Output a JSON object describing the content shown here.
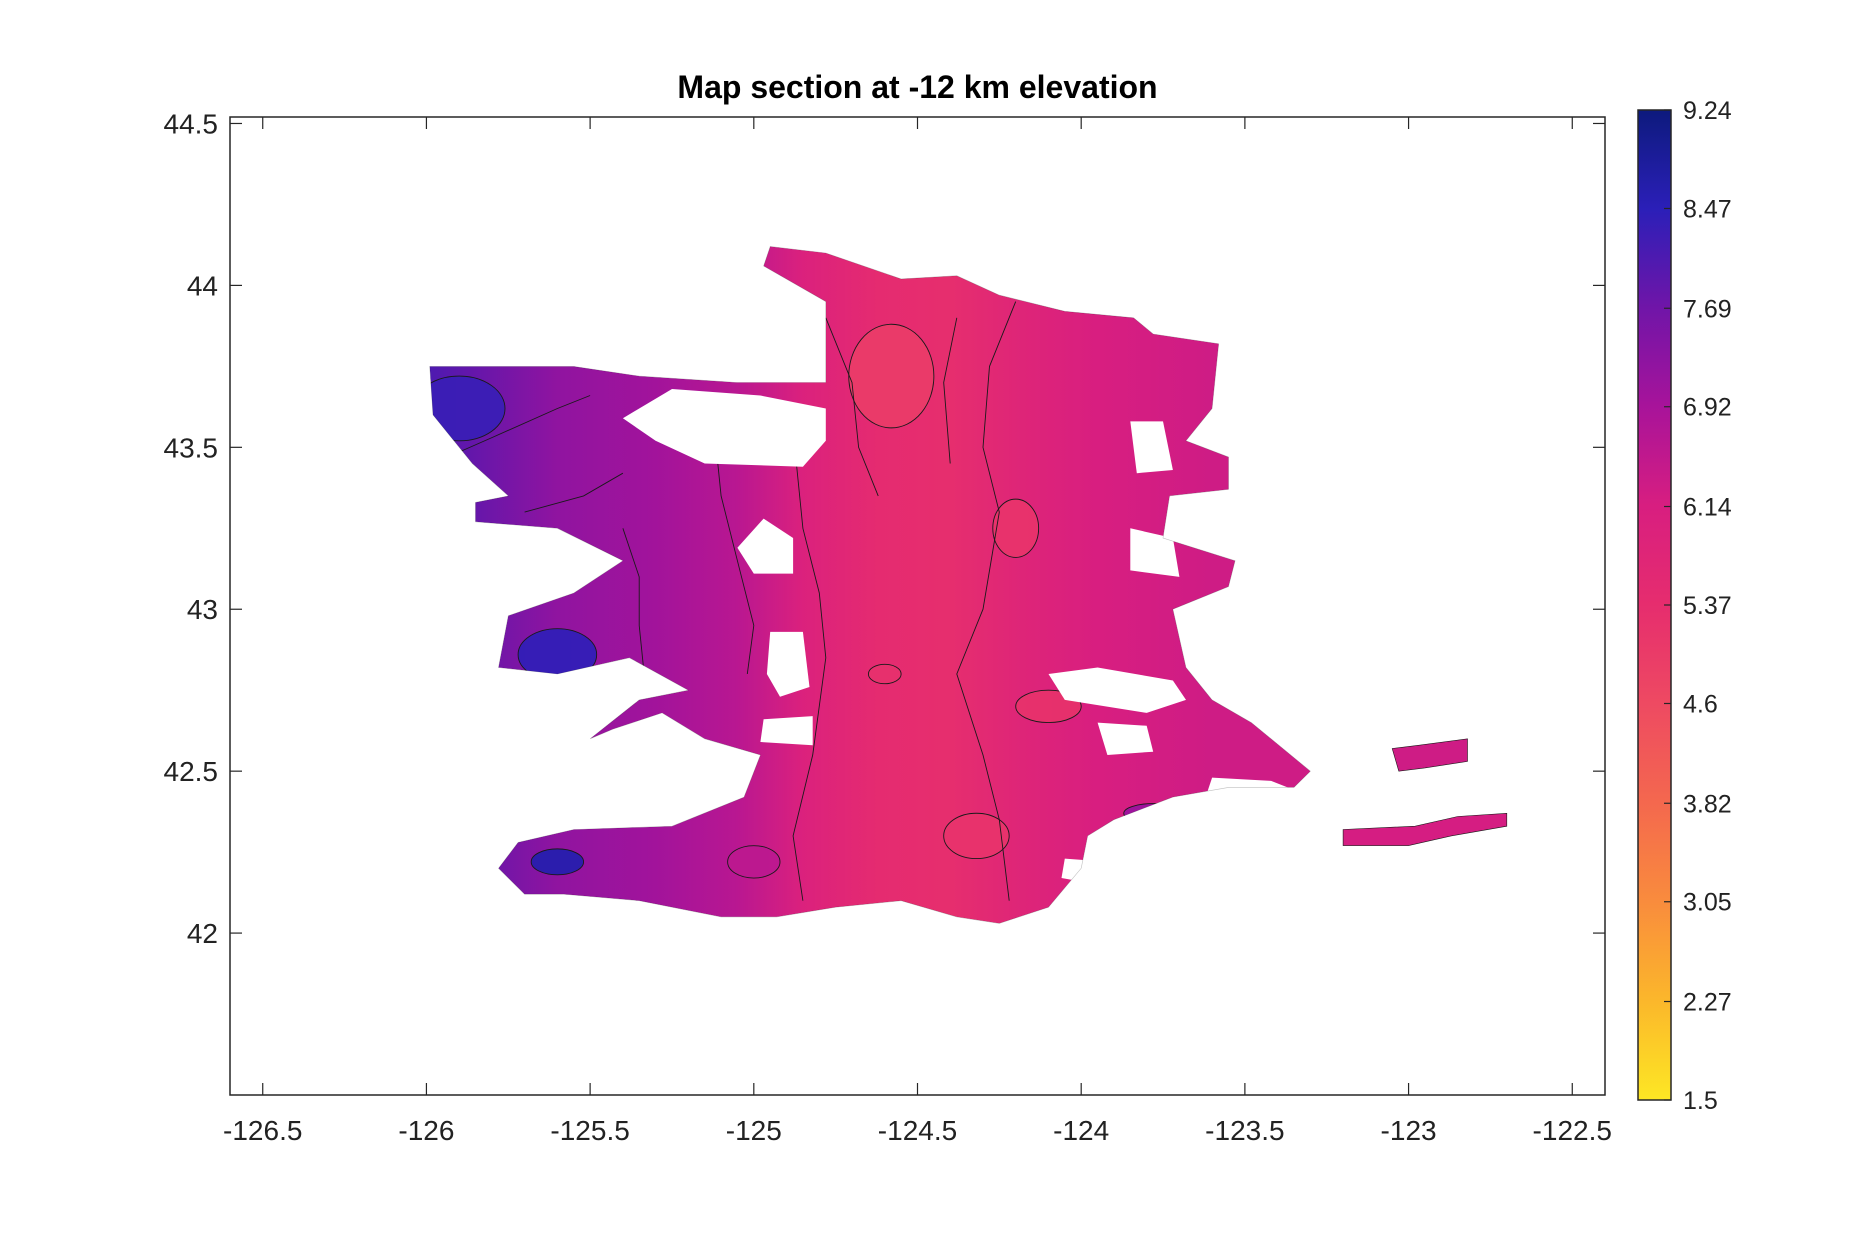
{
  "chart_data": {
    "type": "heatmap",
    "title": "Map section at -12 km elevation",
    "xlabel": "",
    "ylabel": "",
    "xlim": [
      -126.6,
      -122.4
    ],
    "ylim": [
      41.5,
      44.52
    ],
    "x_ticks": [
      "-126.5",
      "-126",
      "-125.5",
      "-125",
      "-124.5",
      "-124",
      "-123.5",
      "-123",
      "-122.5"
    ],
    "x_tick_values": [
      -126.5,
      -126,
      -125.5,
      -125,
      -124.5,
      -124,
      -123.5,
      -123,
      -122.5
    ],
    "y_ticks": [
      "44.5",
      "44",
      "43.5",
      "43",
      "42.5",
      "42"
    ],
    "y_tick_values": [
      44.5,
      44,
      43.5,
      43,
      42.5,
      42
    ],
    "grid": false,
    "colorbar": {
      "min": 1.5,
      "max": 9.24,
      "ticks": [
        "1.5",
        "2.27",
        "3.05",
        "3.82",
        "4.6",
        "5.37",
        "6.14",
        "6.92",
        "7.69",
        "8.47",
        "9.24"
      ],
      "tick_values": [
        1.5,
        2.27,
        3.05,
        3.82,
        4.6,
        5.37,
        6.14,
        6.92,
        7.69,
        8.47,
        9.24
      ],
      "colors": [
        "#fde724",
        "#fbb72b",
        "#f98c3d",
        "#f4684e",
        "#ee4a62",
        "#e62d6e",
        "#d81e80",
        "#a8139a",
        "#7015a8",
        "#2b1fb8",
        "#0d1a7d"
      ]
    },
    "field": {
      "region_outline": [
        [
          -125.99,
          43.75
        ],
        [
          -125.55,
          43.75
        ],
        [
          -125.35,
          43.72
        ],
        [
          -125.05,
          43.7
        ],
        [
          -124.78,
          43.7
        ],
        [
          -124.78,
          43.95
        ],
        [
          -124.97,
          44.06
        ],
        [
          -124.95,
          44.12
        ],
        [
          -124.78,
          44.1
        ],
        [
          -124.55,
          44.02
        ],
        [
          -124.38,
          44.03
        ],
        [
          -124.25,
          43.97
        ],
        [
          -124.05,
          43.92
        ],
        [
          -123.84,
          43.9
        ],
        [
          -123.78,
          43.85
        ],
        [
          -123.58,
          43.82
        ],
        [
          -123.6,
          43.62
        ],
        [
          -123.68,
          43.52
        ],
        [
          -123.55,
          43.47
        ],
        [
          -123.55,
          43.37
        ],
        [
          -123.73,
          43.35
        ],
        [
          -123.75,
          43.22
        ],
        [
          -123.53,
          43.15
        ],
        [
          -123.55,
          43.07
        ],
        [
          -123.72,
          43.0
        ],
        [
          -123.68,
          42.82
        ],
        [
          -123.6,
          42.72
        ],
        [
          -123.48,
          42.65
        ],
        [
          -123.3,
          42.5
        ],
        [
          -123.35,
          42.45
        ],
        [
          -123.55,
          42.45
        ],
        [
          -123.72,
          42.42
        ],
        [
          -123.9,
          42.35
        ],
        [
          -123.98,
          42.3
        ],
        [
          -124.0,
          42.2
        ],
        [
          -124.1,
          42.08
        ],
        [
          -124.25,
          42.03
        ],
        [
          -124.38,
          42.05
        ],
        [
          -124.55,
          42.1
        ],
        [
          -124.75,
          42.08
        ],
        [
          -124.93,
          42.05
        ],
        [
          -125.1,
          42.05
        ],
        [
          -125.35,
          42.1
        ],
        [
          -125.58,
          42.12
        ],
        [
          -125.7,
          42.12
        ],
        [
          -125.78,
          42.2
        ],
        [
          -125.72,
          42.28
        ],
        [
          -125.55,
          42.32
        ],
        [
          -125.25,
          42.33
        ],
        [
          -125.03,
          42.42
        ],
        [
          -124.98,
          42.55
        ],
        [
          -125.15,
          42.6
        ],
        [
          -125.28,
          42.68
        ],
        [
          -125.43,
          42.63
        ],
        [
          -125.5,
          42.6
        ],
        [
          -125.35,
          42.72
        ],
        [
          -125.2,
          42.75
        ],
        [
          -125.38,
          42.85
        ],
        [
          -125.6,
          42.8
        ],
        [
          -125.78,
          42.82
        ],
        [
          -125.75,
          42.98
        ],
        [
          -125.55,
          43.05
        ],
        [
          -125.4,
          43.15
        ],
        [
          -125.6,
          43.25
        ],
        [
          -125.85,
          43.27
        ],
        [
          -125.85,
          43.33
        ],
        [
          -125.75,
          43.35
        ],
        [
          -125.86,
          43.45
        ],
        [
          -125.98,
          43.6
        ]
      ],
      "islands": [
        {
          "outline": [
            [
              -123.05,
              42.57
            ],
            [
              -122.97,
              42.58
            ],
            [
              -122.82,
              42.6
            ],
            [
              -122.82,
              42.53
            ],
            [
              -122.95,
              42.51
            ],
            [
              -123.03,
              42.5
            ]
          ],
          "level": 6.3
        },
        {
          "outline": [
            [
              -123.2,
              42.32
            ],
            [
              -122.98,
              42.33
            ],
            [
              -122.85,
              42.36
            ],
            [
              -122.7,
              42.37
            ],
            [
              -122.7,
              42.33
            ],
            [
              -122.87,
              42.3
            ],
            [
              -123.0,
              42.27
            ],
            [
              -123.2,
              42.27
            ]
          ],
          "level": 6.2
        }
      ],
      "holes": [
        [
          [
            -125.25,
            43.68
          ],
          [
            -124.98,
            43.66
          ],
          [
            -124.78,
            43.62
          ],
          [
            -124.78,
            43.52
          ],
          [
            -124.85,
            43.44
          ],
          [
            -125.15,
            43.45
          ],
          [
            -125.3,
            43.52
          ],
          [
            -125.4,
            43.59
          ]
        ],
        [
          [
            -124.97,
            43.28
          ],
          [
            -124.88,
            43.22
          ],
          [
            -124.88,
            43.11
          ],
          [
            -125.0,
            43.11
          ],
          [
            -125.05,
            43.19
          ]
        ],
        [
          [
            -124.95,
            42.93
          ],
          [
            -124.85,
            42.93
          ],
          [
            -124.83,
            42.76
          ],
          [
            -124.92,
            42.73
          ],
          [
            -124.96,
            42.8
          ]
        ],
        [
          [
            -124.97,
            42.66
          ],
          [
            -124.82,
            42.67
          ],
          [
            -124.82,
            42.58
          ],
          [
            -124.98,
            42.59
          ]
        ],
        [
          [
            -123.85,
            43.58
          ],
          [
            -123.75,
            43.58
          ],
          [
            -123.72,
            43.43
          ],
          [
            -123.83,
            43.42
          ]
        ],
        [
          [
            -123.85,
            43.25
          ],
          [
            -123.72,
            43.22
          ],
          [
            -123.7,
            43.1
          ],
          [
            -123.85,
            43.12
          ]
        ],
        [
          [
            -124.1,
            42.8
          ],
          [
            -123.95,
            42.82
          ],
          [
            -123.72,
            42.78
          ],
          [
            -123.68,
            42.72
          ],
          [
            -123.8,
            42.68
          ],
          [
            -124.05,
            42.72
          ]
        ],
        [
          [
            -123.95,
            42.65
          ],
          [
            -123.8,
            42.64
          ],
          [
            -123.78,
            42.56
          ],
          [
            -123.92,
            42.55
          ]
        ],
        [
          [
            -123.6,
            42.48
          ],
          [
            -123.42,
            42.47
          ],
          [
            -123.32,
            42.43
          ],
          [
            -123.45,
            42.41
          ],
          [
            -123.62,
            42.42
          ]
        ],
        [
          [
            -123.82,
            42.34
          ],
          [
            -123.6,
            42.3
          ],
          [
            -123.45,
            42.26
          ],
          [
            -123.55,
            42.23
          ],
          [
            -123.75,
            42.25
          ]
        ],
        [
          [
            -124.05,
            42.23
          ],
          [
            -123.92,
            42.22
          ],
          [
            -123.95,
            42.15
          ],
          [
            -124.06,
            42.17
          ]
        ]
      ],
      "gradient": [
        {
          "lon": -126.0,
          "value": 8.1
        },
        {
          "lon": -125.85,
          "value": 7.8
        },
        {
          "lon": -125.6,
          "value": 7.25
        },
        {
          "lon": -125.3,
          "value": 7.0
        },
        {
          "lon": -125.05,
          "value": 6.65
        },
        {
          "lon": -124.85,
          "value": 6.0
        },
        {
          "lon": -124.62,
          "value": 5.45
        },
        {
          "lon": -124.4,
          "value": 5.35
        },
        {
          "lon": -124.18,
          "value": 5.8
        },
        {
          "lon": -123.95,
          "value": 6.15
        },
        {
          "lon": -123.6,
          "value": 6.3
        },
        {
          "lon": -122.7,
          "value": 6.3
        }
      ],
      "blobs": [
        {
          "lon": -125.9,
          "lat": 43.62,
          "rlon": 0.14,
          "rlat": 0.1,
          "value": 8.3
        },
        {
          "lon": -125.6,
          "lat": 42.86,
          "rlon": 0.12,
          "rlat": 0.08,
          "value": 8.4
        },
        {
          "lon": -125.6,
          "lat": 42.22,
          "rlon": 0.08,
          "rlat": 0.04,
          "value": 8.6
        },
        {
          "lon": -124.58,
          "lat": 43.72,
          "rlon": 0.13,
          "rlat": 0.16,
          "value": 5.0
        },
        {
          "lon": -124.2,
          "lat": 43.25,
          "rlon": 0.07,
          "rlat": 0.09,
          "value": 5.2
        },
        {
          "lon": -124.1,
          "lat": 42.7,
          "rlon": 0.1,
          "rlat": 0.05,
          "value": 5.25
        },
        {
          "lon": -124.32,
          "lat": 42.3,
          "rlon": 0.1,
          "rlat": 0.07,
          "value": 5.2
        },
        {
          "lon": -124.6,
          "lat": 42.8,
          "rlon": 0.05,
          "rlat": 0.03,
          "value": 5.3
        },
        {
          "lon": -123.78,
          "lat": 42.37,
          "rlon": 0.09,
          "rlat": 0.03,
          "value": 7.1
        },
        {
          "lon": -125.0,
          "lat": 42.22,
          "rlon": 0.08,
          "rlat": 0.05,
          "value": 6.6
        }
      ],
      "contour_lines": [
        [
          [
            -125.98,
            43.45
          ],
          [
            -125.8,
            43.53
          ],
          [
            -125.6,
            43.62
          ],
          [
            -125.5,
            43.66
          ]
        ],
        [
          [
            -125.7,
            43.3
          ],
          [
            -125.52,
            43.35
          ],
          [
            -125.4,
            43.42
          ]
        ],
        [
          [
            -125.4,
            43.25
          ],
          [
            -125.35,
            43.1
          ],
          [
            -125.35,
            42.95
          ],
          [
            -125.33,
            42.75
          ]
        ],
        [
          [
            -125.25,
            42.6
          ],
          [
            -125.35,
            42.45
          ],
          [
            -125.45,
            42.33
          ]
        ],
        [
          [
            -125.12,
            43.55
          ],
          [
            -125.1,
            43.35
          ],
          [
            -125.05,
            43.15
          ],
          [
            -125.0,
            42.95
          ],
          [
            -125.02,
            42.8
          ]
        ],
        [
          [
            -124.87,
            43.45
          ],
          [
            -124.85,
            43.25
          ],
          [
            -124.8,
            43.05
          ],
          [
            -124.78,
            42.85
          ],
          [
            -124.82,
            42.55
          ],
          [
            -124.88,
            42.3
          ],
          [
            -124.85,
            42.1
          ]
        ],
        [
          [
            -124.78,
            43.9
          ],
          [
            -124.7,
            43.7
          ],
          [
            -124.68,
            43.5
          ],
          [
            -124.62,
            43.35
          ]
        ],
        [
          [
            -124.2,
            43.95
          ],
          [
            -124.28,
            43.75
          ],
          [
            -124.3,
            43.5
          ],
          [
            -124.25,
            43.3
          ],
          [
            -124.3,
            43.0
          ],
          [
            -124.38,
            42.8
          ],
          [
            -124.3,
            42.55
          ],
          [
            -124.25,
            42.35
          ],
          [
            -124.22,
            42.1
          ]
        ],
        [
          [
            -124.38,
            43.9
          ],
          [
            -124.42,
            43.7
          ],
          [
            -124.4,
            43.45
          ]
        ]
      ],
      "contour_levels": [
        8.0,
        7.6,
        7.1,
        7.0,
        6.9,
        6.5,
        5.5,
        5.8,
        5.45
      ]
    }
  }
}
